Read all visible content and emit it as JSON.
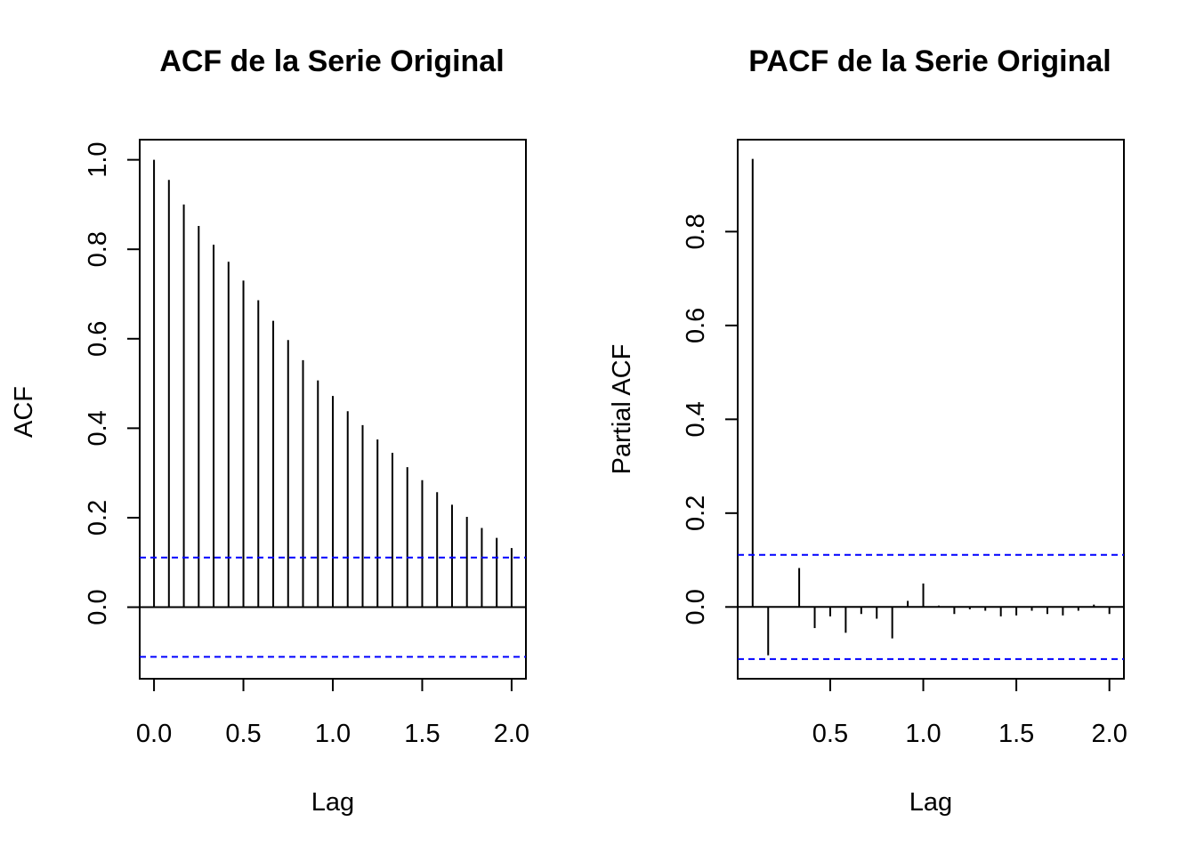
{
  "chart_data": [
    {
      "type": "bar",
      "subtype": "acf",
      "title": "ACF de la Serie Original",
      "xlabel": "Lag",
      "ylabel": "ACF",
      "xlim": [
        -0.08,
        2.08
      ],
      "ylim": [
        -0.16,
        1.045
      ],
      "x_ticks": [
        0.0,
        0.5,
        1.0,
        1.5,
        2.0
      ],
      "x_tick_labels": [
        "0.0",
        "0.5",
        "1.0",
        "1.5",
        "2.0"
      ],
      "y_ticks": [
        0.0,
        0.2,
        0.4,
        0.6,
        0.8,
        1.0
      ],
      "y_tick_labels": [
        "0.0",
        "0.2",
        "0.4",
        "0.6",
        "0.8",
        "1.0"
      ],
      "zero_line": true,
      "confidence_bound": 0.111,
      "confidence_color": "#0000ff",
      "bar_color": "#000000",
      "lags": [
        0.0,
        0.0833,
        0.1667,
        0.25,
        0.3333,
        0.4167,
        0.5,
        0.5833,
        0.6667,
        0.75,
        0.8333,
        0.9167,
        1.0,
        1.0833,
        1.1667,
        1.25,
        1.3333,
        1.4167,
        1.5,
        1.5833,
        1.6667,
        1.75,
        1.8333,
        1.9167,
        2.0
      ],
      "values": [
        1.0,
        0.955,
        0.9,
        0.852,
        0.81,
        0.772,
        0.73,
        0.686,
        0.64,
        0.597,
        0.552,
        0.507,
        0.472,
        0.438,
        0.407,
        0.375,
        0.345,
        0.313,
        0.284,
        0.257,
        0.229,
        0.202,
        0.177,
        0.155,
        0.132
      ]
    },
    {
      "type": "bar",
      "subtype": "pacf",
      "title": "PACF de la Serie Original",
      "xlabel": "Lag",
      "ylabel": "Partial ACF",
      "xlim": [
        0.003,
        2.078
      ],
      "ylim": [
        -0.153,
        0.996
      ],
      "x_ticks": [
        0.5,
        1.0,
        1.5,
        2.0
      ],
      "x_tick_labels": [
        "0.5",
        "1.0",
        "1.5",
        "2.0"
      ],
      "y_ticks": [
        0.0,
        0.2,
        0.4,
        0.6,
        0.8
      ],
      "y_tick_labels": [
        "0.0",
        "0.2",
        "0.4",
        "0.6",
        "0.8"
      ],
      "zero_line": true,
      "confidence_bound": 0.111,
      "confidence_color": "#0000ff",
      "bar_color": "#000000",
      "lags": [
        0.0833,
        0.1667,
        0.25,
        0.3333,
        0.4167,
        0.5,
        0.5833,
        0.6667,
        0.75,
        0.8333,
        0.9167,
        1.0,
        1.0833,
        1.1667,
        1.25,
        1.3333,
        1.4167,
        1.5,
        1.5833,
        1.6667,
        1.75,
        1.8333,
        1.9167,
        2.0
      ],
      "values": [
        0.955,
        -0.103,
        0.0,
        0.083,
        -0.045,
        -0.02,
        -0.055,
        -0.015,
        -0.025,
        -0.067,
        0.013,
        0.05,
        0.003,
        -0.015,
        -0.005,
        -0.008,
        -0.02,
        -0.018,
        -0.008,
        -0.015,
        -0.018,
        -0.008,
        0.005,
        -0.015
      ]
    }
  ]
}
